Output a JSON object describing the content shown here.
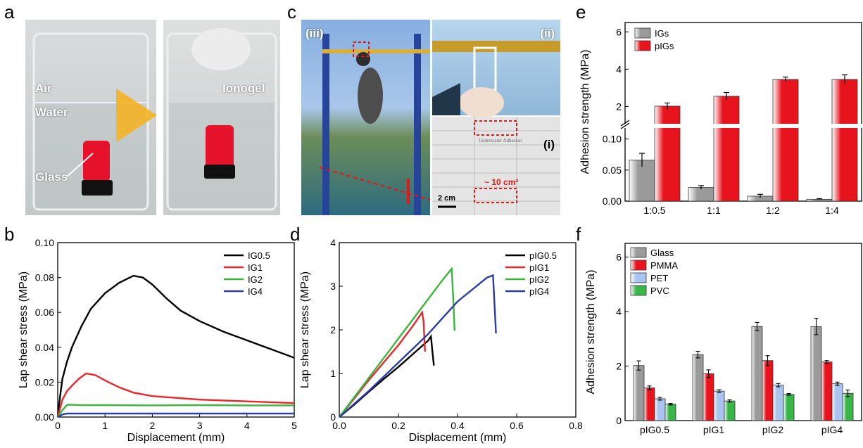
{
  "panels": {
    "a": "a",
    "b": "b",
    "c": "c",
    "d": "d",
    "e": "e",
    "f": "f"
  },
  "photo_a": {
    "air": "Air",
    "water": "Water",
    "glass": "Glass",
    "ionogel": "Ionogel"
  },
  "photo_c": {
    "iii": "(iii)",
    "ii": "(ii)",
    "i": "(i)",
    "area": "~ 10 cm²",
    "scale": "2 cm",
    "tile_text": "Underwater Adhesion"
  },
  "colors": {
    "IG0.5": "#000000",
    "IG1": "#e8262b",
    "IG2": "#3cb53c",
    "IG4": "#2b3da0",
    "bar_red": "#e8141d",
    "bar_gray": "#9a9a9a",
    "bar_blue": "#a9c4ef",
    "bar_green": "#39b54a"
  },
  "chart_data": [
    {
      "id": "b",
      "type": "line",
      "xlabel": "Displacement (mm)",
      "ylabel": "Lap shear stress (MPa)",
      "xlim": [
        0,
        5
      ],
      "ylim": [
        0,
        0.1
      ],
      "xticks": [
        "0",
        "1",
        "2",
        "3",
        "4",
        "5"
      ],
      "yticks": [
        "0.00",
        "0.02",
        "0.04",
        "0.06",
        "0.08",
        "0.10"
      ],
      "legend_position": "top-right",
      "series": [
        {
          "name": "IG0.5",
          "color": "#000000",
          "x": [
            0,
            0.05,
            0.1,
            0.2,
            0.3,
            0.5,
            0.7,
            1.0,
            1.3,
            1.6,
            1.8,
            2.0,
            2.3,
            2.6,
            3.0,
            3.5,
            4.0,
            4.5,
            5.0
          ],
          "y": [
            0,
            0.012,
            0.022,
            0.032,
            0.04,
            0.052,
            0.062,
            0.071,
            0.077,
            0.081,
            0.08,
            0.076,
            0.068,
            0.061,
            0.055,
            0.049,
            0.044,
            0.039,
            0.034
          ]
        },
        {
          "name": "IG1",
          "color": "#e8262b",
          "x": [
            0,
            0.05,
            0.1,
            0.2,
            0.3,
            0.45,
            0.6,
            0.8,
            1.0,
            1.3,
            1.6,
            2.0,
            2.5,
            3.0,
            3.5,
            4.0,
            4.5,
            5.0
          ],
          "y": [
            0,
            0.005,
            0.01,
            0.015,
            0.018,
            0.022,
            0.025,
            0.024,
            0.021,
            0.017,
            0.014,
            0.012,
            0.011,
            0.01,
            0.0095,
            0.009,
            0.0085,
            0.008
          ]
        },
        {
          "name": "IG2",
          "color": "#3cb53c",
          "x": [
            0,
            0.1,
            0.2,
            0.3,
            0.5,
            1.0,
            2.0,
            3.0,
            4.0,
            5.0
          ],
          "y": [
            0,
            0.004,
            0.007,
            0.007,
            0.0068,
            0.0068,
            0.0067,
            0.0068,
            0.0067,
            0.0067
          ]
        },
        {
          "name": "IG4",
          "color": "#2b3da0",
          "x": [
            0,
            0.1,
            0.2,
            0.5,
            1.0,
            2.0,
            3.0,
            4.0,
            5.0
          ],
          "y": [
            0,
            0.0015,
            0.002,
            0.002,
            0.002,
            0.002,
            0.002,
            0.002,
            0.002
          ]
        }
      ]
    },
    {
      "id": "d",
      "type": "line",
      "xlabel": "Displacement (mm)",
      "ylabel": "Lap shear stress (MPa)",
      "xlim": [
        0,
        0.8
      ],
      "ylim": [
        0,
        4
      ],
      "xticks": [
        "0.0",
        "0.2",
        "0.4",
        "0.6",
        "0.8"
      ],
      "yticks": [
        "0",
        "1",
        "2",
        "3",
        "4"
      ],
      "legend_position": "top-right",
      "series": [
        {
          "name": "pIG0.5",
          "color": "#000000",
          "x": [
            0,
            0.05,
            0.1,
            0.15,
            0.2,
            0.25,
            0.3,
            0.31,
            0.315,
            0.32
          ],
          "y": [
            0,
            0.28,
            0.58,
            0.87,
            1.15,
            1.45,
            1.75,
            1.85,
            1.5,
            1.18
          ]
        },
        {
          "name": "pIG1",
          "color": "#e8262b",
          "x": [
            0,
            0.05,
            0.1,
            0.15,
            0.2,
            0.25,
            0.28,
            0.285,
            0.29
          ],
          "y": [
            0,
            0.42,
            0.85,
            1.25,
            1.65,
            2.1,
            2.4,
            2.2,
            1.5
          ]
        },
        {
          "name": "pIG2",
          "color": "#3cb53c",
          "x": [
            0,
            0.05,
            0.1,
            0.15,
            0.2,
            0.25,
            0.3,
            0.35,
            0.38,
            0.385,
            0.39
          ],
          "y": [
            0,
            0.45,
            0.9,
            1.35,
            1.8,
            2.25,
            2.7,
            3.15,
            3.4,
            2.8,
            1.98
          ]
        },
        {
          "name": "pIG4",
          "color": "#2b3da0",
          "x": [
            0,
            0.1,
            0.2,
            0.3,
            0.4,
            0.5,
            0.52,
            0.525,
            0.53
          ],
          "y": [
            0,
            0.6,
            1.25,
            1.9,
            2.65,
            3.2,
            3.25,
            2.6,
            1.92
          ]
        }
      ]
    },
    {
      "id": "e",
      "type": "bar",
      "ylabel": "Adhesion strength (MPa)",
      "categories": [
        "1:0.5",
        "1:1",
        "1:2",
        "1:4"
      ],
      "axis_break": true,
      "lower_yticks": [
        "0.00",
        "0.05",
        "0.10"
      ],
      "upper_yticks": [
        "2",
        "4",
        "6"
      ],
      "lower_ylim": [
        0,
        0.12
      ],
      "upper_ylim": [
        1,
        6.5
      ],
      "legend_position": "top-left",
      "series": [
        {
          "name": "IGs",
          "color": "#9a9a9a",
          "values": [
            0.066,
            0.022,
            0.008,
            0.003
          ],
          "errors": [
            0.011,
            0.003,
            0.003,
            0.001
          ]
        },
        {
          "name": "pIGs",
          "color": "#e8141d",
          "values": [
            2.02,
            2.55,
            3.45,
            3.45
          ],
          "errors": [
            0.17,
            0.2,
            0.13,
            0.25
          ]
        }
      ]
    },
    {
      "id": "f",
      "type": "bar",
      "ylabel": "Adhesion strength (MPa)",
      "categories": [
        "pIG0.5",
        "pIG1",
        "pIG2",
        "pIG4"
      ],
      "ylim": [
        0,
        6.5
      ],
      "yticks": [
        "0",
        "2",
        "4",
        "6"
      ],
      "legend_position": "top-left",
      "series": [
        {
          "name": "Glass",
          "color": "#9a9a9a",
          "values": [
            2.02,
            2.42,
            3.45,
            3.45
          ],
          "errors": [
            0.17,
            0.12,
            0.15,
            0.3
          ]
        },
        {
          "name": "PMMA",
          "color": "#e8141d",
          "values": [
            1.2,
            1.72,
            2.2,
            2.15
          ],
          "errors": [
            0.07,
            0.14,
            0.18,
            0.05
          ]
        },
        {
          "name": "PET",
          "color": "#a9c4ef",
          "values": [
            0.8,
            1.08,
            1.3,
            1.35
          ],
          "errors": [
            0.05,
            0.05,
            0.06,
            0.06
          ]
        },
        {
          "name": "PVC",
          "color": "#39b54a",
          "values": [
            0.6,
            0.72,
            0.96,
            1.0
          ],
          "errors": [
            0.03,
            0.04,
            0.03,
            0.12
          ]
        }
      ]
    }
  ]
}
